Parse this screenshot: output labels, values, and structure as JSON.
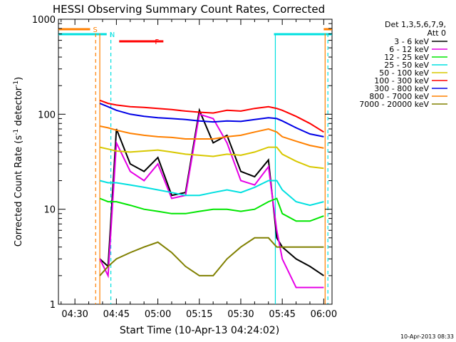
{
  "chart_data": {
    "type": "line",
    "title": "HESSI Observing Summary Count Rates, Corrected",
    "xlabel": "Start Time (10-Apr-13 04:24:02)",
    "ylabel": "Corrected Count Rate (s⁻¹ detector⁻¹)",
    "ylabel_main": "Corrected Count Rate (s",
    "ylabel_sup1": "-1",
    "ylabel_mid": " detector",
    "ylabel_sup2": "-1",
    "ylabel_end": ")",
    "y_scale": "log",
    "ylim": [
      1,
      1000
    ],
    "xlim": [
      "04:24:02",
      "06:03:00"
    ],
    "x_ticks": [
      "04:30",
      "04:45",
      "05:00",
      "05:15",
      "05:30",
      "05:45",
      "06:00"
    ],
    "y_ticks": [
      "1",
      "10",
      "100",
      "1000"
    ],
    "timestamp": "10-Apr-2013 08:33",
    "legend_header": [
      "Det 1,3,5,6,7,9,",
      "Att 0"
    ],
    "flags": [
      {
        "label": "S",
        "color": "#ff8000",
        "start": "04:24:02",
        "end": "04:35:30",
        "restart": "06:00:00",
        "restart_end": "06:03:00"
      },
      {
        "label": "N",
        "color": "#00e0e0",
        "start": "04:24:02",
        "end": "04:41:30",
        "restart": "05:42:00",
        "restart_end": "06:03:00"
      },
      {
        "label": "F",
        "color": "#ff0000",
        "start": "04:46:00",
        "end": "05:02:00"
      }
    ],
    "vertical_markers": [
      {
        "time": "04:37:30",
        "color": "#ff8000",
        "style": "dashed"
      },
      {
        "time": "04:39:00",
        "color": "#ff8000",
        "style": "solid"
      },
      {
        "time": "04:43:00",
        "color": "#00e0e0",
        "style": "dashed"
      },
      {
        "time": "05:42:30",
        "color": "#00e0e0",
        "style": "solid"
      },
      {
        "time": "06:00:30",
        "color": "#ff8000",
        "style": "solid"
      },
      {
        "time": "06:01:30",
        "color": "#00e0e0",
        "style": "dashed"
      }
    ],
    "x": [
      "04:39",
      "04:42",
      "04:45",
      "04:50",
      "04:55",
      "05:00",
      "05:05",
      "05:10",
      "05:15",
      "05:20",
      "05:25",
      "05:30",
      "05:35",
      "05:40",
      "05:43",
      "05:45",
      "05:50",
      "05:55",
      "06:00"
    ],
    "series": [
      {
        "name": "3 - 6 keV",
        "color": "#000000",
        "values": [
          3,
          2.5,
          70,
          30,
          25,
          35,
          14,
          15,
          110,
          50,
          60,
          25,
          22,
          33,
          5,
          4,
          3,
          2.5,
          2
        ]
      },
      {
        "name": "6 - 12 keV",
        "color": "#e600e6",
        "values": [
          3,
          2,
          50,
          25,
          20,
          30,
          13,
          14,
          100,
          90,
          50,
          20,
          18,
          28,
          6,
          3,
          1.5,
          1.5,
          1.5
        ]
      },
      {
        "name": "12 - 25 keV",
        "color": "#00e600",
        "values": [
          13,
          12,
          12,
          11,
          10,
          9.5,
          9,
          9,
          9.5,
          10,
          10,
          9.5,
          10,
          12,
          13,
          9,
          7.5,
          7.5,
          8.5
        ]
      },
      {
        "name": "25 - 50 keV",
        "color": "#00e0e0",
        "values": [
          20,
          19,
          19,
          18,
          17,
          16,
          15,
          14,
          14,
          15,
          16,
          15,
          17,
          20,
          20,
          16,
          12,
          11,
          12
        ]
      },
      {
        "name": "50 - 100 keV",
        "color": "#d8c800",
        "values": [
          45,
          43,
          41,
          40,
          41,
          42,
          40,
          38,
          37,
          36,
          38,
          37,
          40,
          45,
          45,
          38,
          32,
          28,
          27
        ]
      },
      {
        "name": "100 - 300 keV",
        "color": "#ff0000",
        "values": [
          140,
          130,
          125,
          120,
          118,
          115,
          112,
          108,
          105,
          103,
          110,
          108,
          115,
          120,
          115,
          110,
          95,
          80,
          65
        ]
      },
      {
        "name": "300 - 800 keV",
        "color": "#0000e6",
        "values": [
          130,
          120,
          110,
          100,
          95,
          92,
          90,
          88,
          85,
          83,
          85,
          84,
          88,
          92,
          90,
          85,
          72,
          62,
          58
        ]
      },
      {
        "name": "800 - 7000 keV",
        "color": "#ff8000",
        "values": [
          75,
          72,
          68,
          63,
          60,
          58,
          57,
          55,
          55,
          55,
          58,
          60,
          65,
          70,
          65,
          58,
          52,
          47,
          44
        ]
      },
      {
        "name": "7000 - 20000 keV",
        "color": "#808000",
        "values": [
          2,
          2.5,
          3,
          3.5,
          4,
          4.5,
          3.5,
          2.5,
          2,
          2,
          3,
          4,
          5,
          5,
          4,
          4,
          4,
          4,
          4
        ]
      }
    ]
  }
}
